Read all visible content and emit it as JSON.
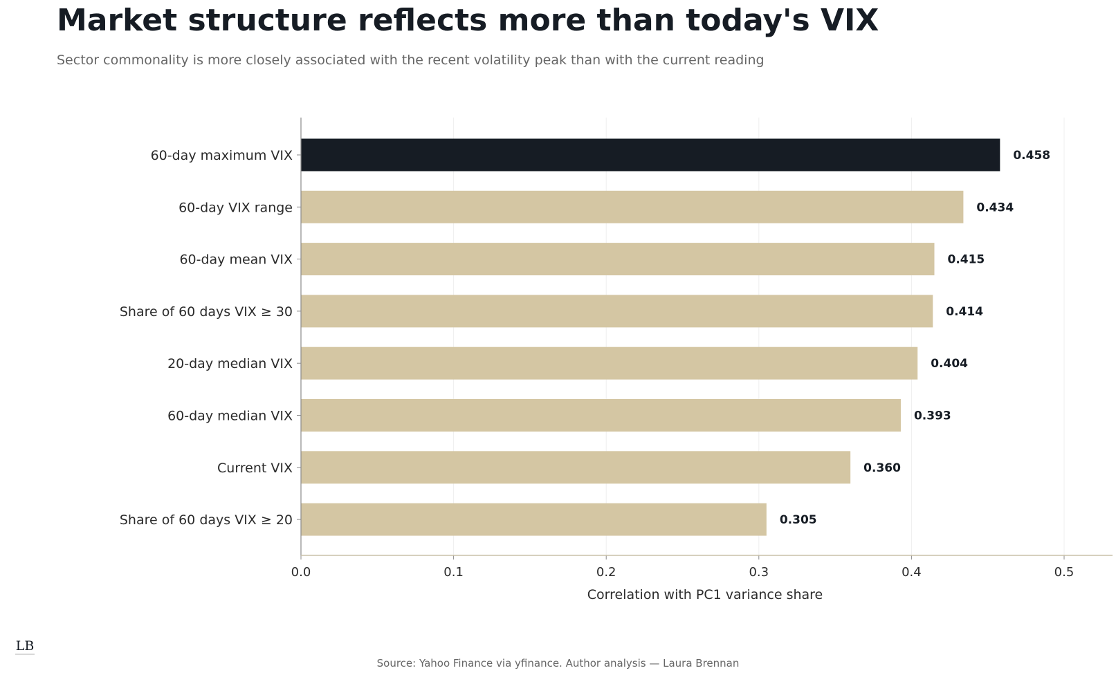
{
  "header": {
    "title": "Market structure reflects more than today's VIX",
    "subtitle": "Sector commonality is more closely associated with the recent volatility peak than with the current reading"
  },
  "footer": {
    "source": "Source: Yahoo Finance via yfinance. Author analysis — Laura Brennan",
    "logo_text": "LB"
  },
  "colors": {
    "highlight": "#161c24",
    "bar": "#d4c6a3",
    "grid": "#efefef",
    "axis": "#c9c0a8"
  },
  "chart_data": {
    "type": "bar",
    "orientation": "horizontal",
    "categories": [
      "60-day maximum VIX",
      "60-day VIX range",
      "60-day mean VIX",
      "Share of 60 days VIX ≥ 30",
      "20-day median VIX",
      "60-day median VIX",
      "Current VIX",
      "Share of 60 days VIX ≥ 20"
    ],
    "values": [
      0.458,
      0.434,
      0.415,
      0.414,
      0.404,
      0.393,
      0.36,
      0.305
    ],
    "value_labels": [
      "0.458",
      "0.434",
      "0.415",
      "0.414",
      "0.404",
      "0.393",
      "0.360",
      "0.305"
    ],
    "highlight_index": 0,
    "xlabel": "Correlation with PC1 variance share",
    "ylabel": "",
    "xlim": [
      0,
      0.5
    ],
    "xticks": [
      0.0,
      0.1,
      0.2,
      0.3,
      0.4,
      0.5
    ],
    "xtick_labels": [
      "0.0",
      "0.1",
      "0.2",
      "0.3",
      "0.4",
      "0.5"
    ],
    "grid": true,
    "legend": "none"
  }
}
